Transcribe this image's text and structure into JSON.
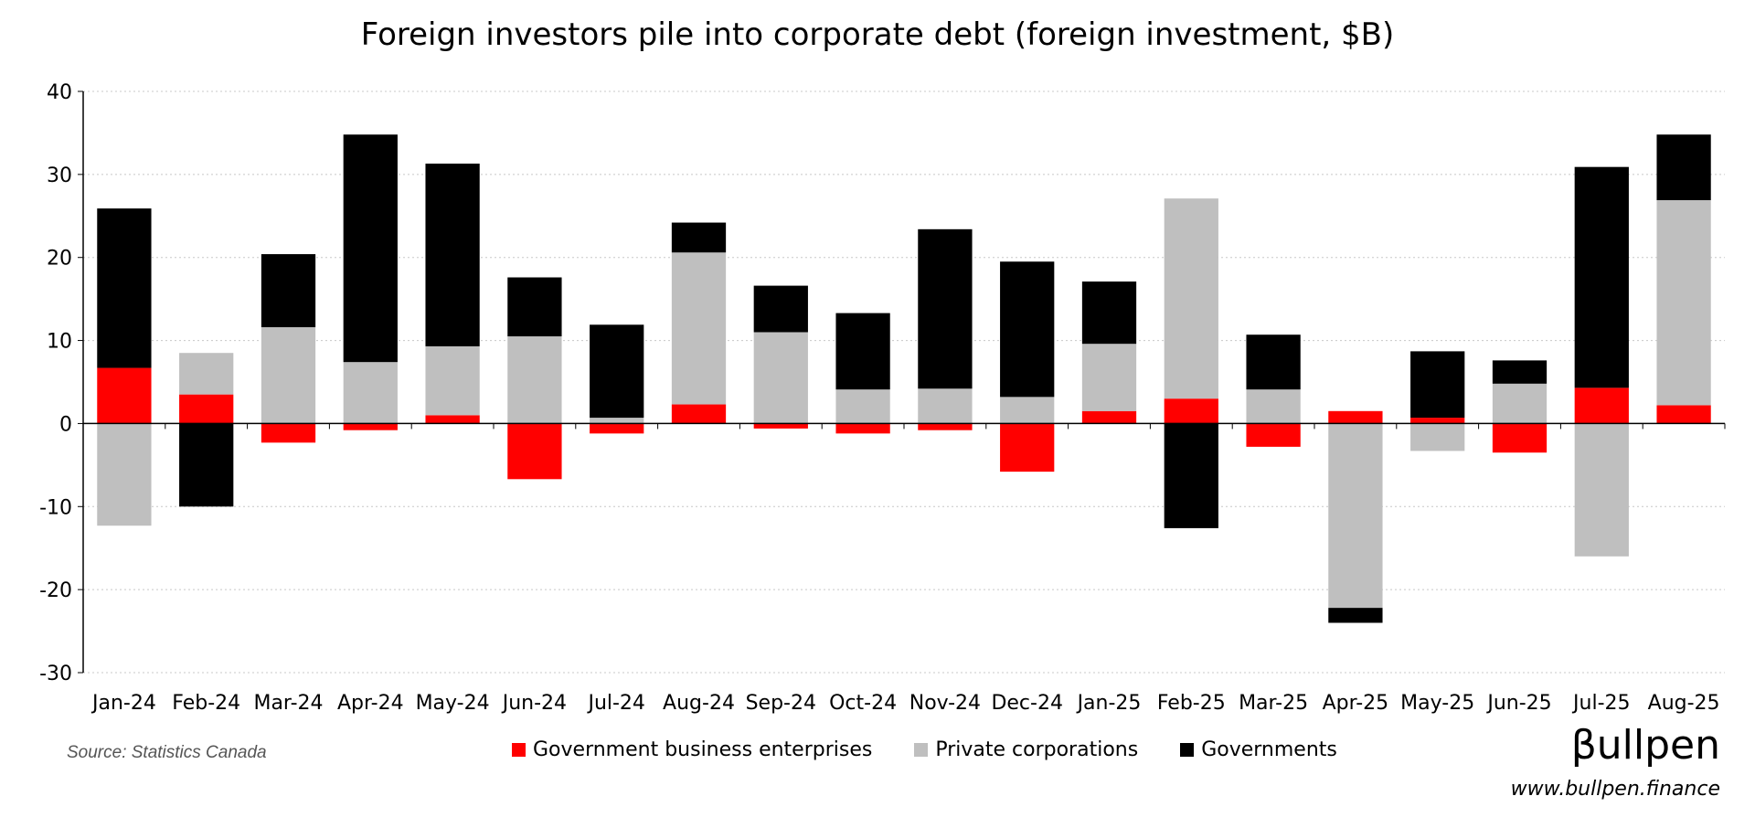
{
  "chart_data": {
    "type": "bar",
    "stacked": true,
    "title": "Foreign investors pile into corporate debt (foreign investment, $B)",
    "xlabel": "",
    "ylabel": "",
    "ylim": [
      -30,
      40
    ],
    "yticks": [
      40,
      30,
      20,
      10,
      0,
      -10,
      -20,
      -30
    ],
    "grid": true,
    "legend_position": "bottom-center",
    "categories": [
      "Jan-24",
      "Feb-24",
      "Mar-24",
      "Apr-24",
      "May-24",
      "Jun-24",
      "Jul-24",
      "Aug-24",
      "Sep-24",
      "Oct-24",
      "Nov-24",
      "Dec-24",
      "Jan-25",
      "Feb-25",
      "Mar-25",
      "Apr-25",
      "May-25",
      "Jun-25",
      "Jul-25",
      "Aug-25"
    ],
    "series": [
      {
        "name": "Government business enterprises",
        "color": "#ff0000",
        "values": [
          6.7,
          3.5,
          -2.3,
          -0.8,
          1.0,
          -6.7,
          -1.2,
          2.3,
          -0.6,
          -1.2,
          -0.8,
          -5.8,
          1.5,
          3.0,
          -2.8,
          1.5,
          0.7,
          -3.5,
          4.3,
          2.2
        ]
      },
      {
        "name": "Private corporations",
        "color": "#bfbfbf",
        "values": [
          -12.3,
          5.0,
          11.6,
          7.4,
          8.3,
          10.5,
          0.7,
          18.3,
          11.0,
          4.1,
          4.2,
          3.2,
          8.1,
          24.1,
          4.1,
          -22.2,
          -3.3,
          4.8,
          -16.0,
          24.7
        ]
      },
      {
        "name": "Governments",
        "color": "#000000",
        "values": [
          19.2,
          -10.0,
          8.8,
          27.4,
          22.0,
          7.1,
          11.2,
          3.6,
          5.6,
          9.2,
          19.2,
          16.3,
          7.5,
          -12.6,
          6.6,
          -1.8,
          8.0,
          2.8,
          26.6,
          7.9
        ]
      }
    ]
  },
  "footer": {
    "source": "Source: Statistics Canada",
    "brand": "βullpen",
    "website": "www.bullpen.finance"
  }
}
